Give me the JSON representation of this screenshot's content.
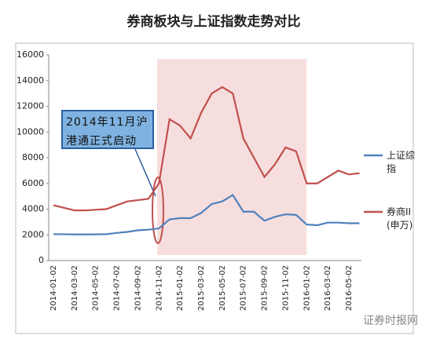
{
  "chart_data": {
    "type": "line",
    "title": "券商板块与上证指数走势对比",
    "categories": [
      "2014-01-02",
      null,
      "2014-03-02",
      null,
      "2014-05-02",
      null,
      "2014-07-02",
      null,
      "2014-09-02",
      null,
      "2014-11-02",
      null,
      "2015-01-02",
      null,
      "2015-03-02",
      null,
      "2015-05-02",
      null,
      "2015-07-02",
      null,
      "2015-09-02",
      null,
      "2015-11-02",
      null,
      "2016-01-02",
      null,
      "2016-03-02",
      null,
      "2016-05-02",
      null
    ],
    "series": [
      {
        "name": "上证综指",
        "color": "#4f81bd",
        "values": [
          2050,
          2050,
          2030,
          2030,
          2040,
          2050,
          2150,
          2230,
          2350,
          2400,
          2500,
          3200,
          3300,
          3300,
          3700,
          4400,
          4600,
          5100,
          3800,
          3800,
          3100,
          3400,
          3600,
          3550,
          2800,
          2750,
          2950,
          2950,
          2900,
          2900
        ]
      },
      {
        "name": "券商II(申万)",
        "color": "#c0504d",
        "values": [
          4300,
          4100,
          3900,
          3900,
          3950,
          4000,
          4300,
          4600,
          4700,
          4800,
          6000,
          11000,
          10500,
          9500,
          11500,
          13000,
          13500,
          13000,
          9500,
          8000,
          6500,
          7500,
          8800,
          8500,
          6000,
          6000,
          6500,
          7000,
          6700,
          6800
        ]
      }
    ],
    "ylim": [
      0,
      16000
    ],
    "yticks": [
      0,
      2000,
      4000,
      6000,
      8000,
      10000,
      12000,
      14000,
      16000
    ],
    "grid": false,
    "legend": "right",
    "annotation": "2014年11月沪港通正式启动",
    "watermark": "证券时报网"
  }
}
